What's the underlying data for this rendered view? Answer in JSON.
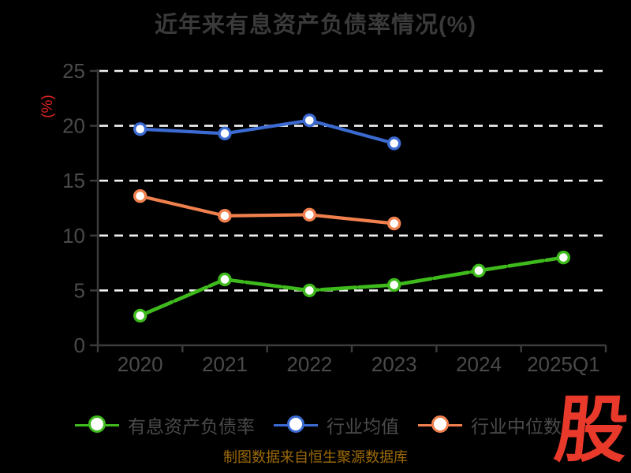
{
  "title": "近年来有息资产负债率情况(%)",
  "footer": {
    "source_text": "制图数据来自恒生聚源数据库"
  },
  "logo": {
    "text": "股",
    "color": "#e8392b"
  },
  "axis": {
    "ylabel": "(%)",
    "ylabel_color": "#e02222",
    "tick_label_color": "#4a4a4a",
    "axis_line_color": "#3c3c3c",
    "gridline_color": "#f2f2f2",
    "title_color": "#3a3a3a"
  },
  "chart_data": {
    "type": "line",
    "title": "近年来有息资产负债率情况(%)",
    "xlabel": "",
    "ylabel": "(%)",
    "categories": [
      "2020",
      "2021",
      "2022",
      "2023",
      "2024",
      "2025Q1"
    ],
    "series": [
      {
        "name": "有息资产负债率",
        "color": "#3eba1c",
        "dashed": true,
        "values": [
          2.7,
          6.0,
          5.0,
          5.5,
          6.8,
          8.0
        ]
      },
      {
        "name": "行业均值",
        "color": "#3b6ad1",
        "dashed": false,
        "values": [
          19.7,
          19.3,
          20.5,
          18.4,
          null,
          null
        ]
      },
      {
        "name": "行业中位数",
        "color": "#f0804d",
        "dashed": false,
        "values": [
          13.6,
          11.8,
          11.9,
          11.1,
          null,
          null
        ]
      }
    ],
    "ylim": [
      0,
      25
    ],
    "yticks": [
      0,
      5,
      10,
      15,
      20,
      25
    ],
    "grid": "horizontal-dashed-white",
    "legend_position": "bottom",
    "marker": "circle-white-fill"
  }
}
